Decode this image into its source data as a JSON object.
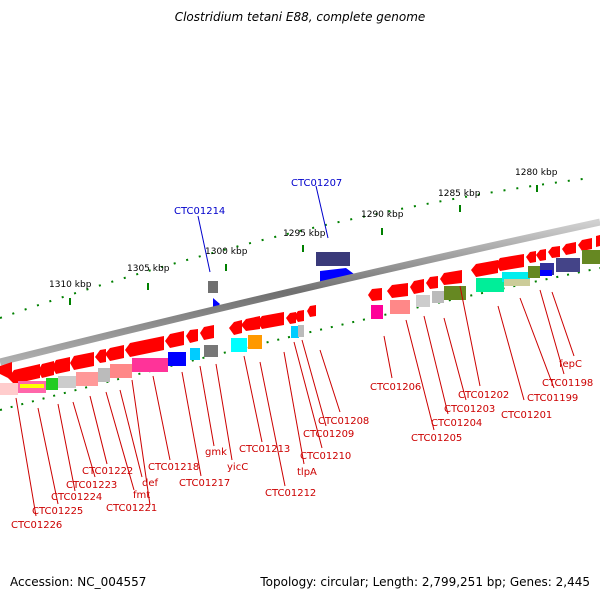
{
  "title": "Clostridium tetani E88, complete genome",
  "footer": {
    "accession": "Accession: NC_004557",
    "topology": "Topology: circular; Length: 2,799,251 bp; Genes: 2,445"
  },
  "ticks": [
    "1280 kbp",
    "1285 kbp",
    "1290 kbp",
    "1295 kbp",
    "1300 kbp",
    "1305 kbp",
    "1310 kbp"
  ],
  "top_labels": [
    "CTC01214",
    "CTC01207"
  ],
  "bottom_labels": [
    "CTC01226",
    "CTC01225",
    "CTC01224",
    "CTC01223",
    "CTC01222",
    "fmt",
    "def",
    "CTC01221",
    "CTC01218",
    "CTC01217",
    "gmk",
    "yicC",
    "CTC01213",
    "CTC01212",
    "tlpA",
    "CTC01210",
    "CTC01209",
    "CTC01208",
    "CTC01206",
    "CTC01205",
    "CTC01204",
    "CTC01203",
    "CTC01202",
    "CTC01201",
    "CTC01199",
    "CTC01198",
    "fepC"
  ],
  "colors": {
    "forward": "#ff0000",
    "backbone": "#808080",
    "label_red": "#cc0000",
    "label_blue": "#0000cc",
    "tick": "#008000"
  }
}
